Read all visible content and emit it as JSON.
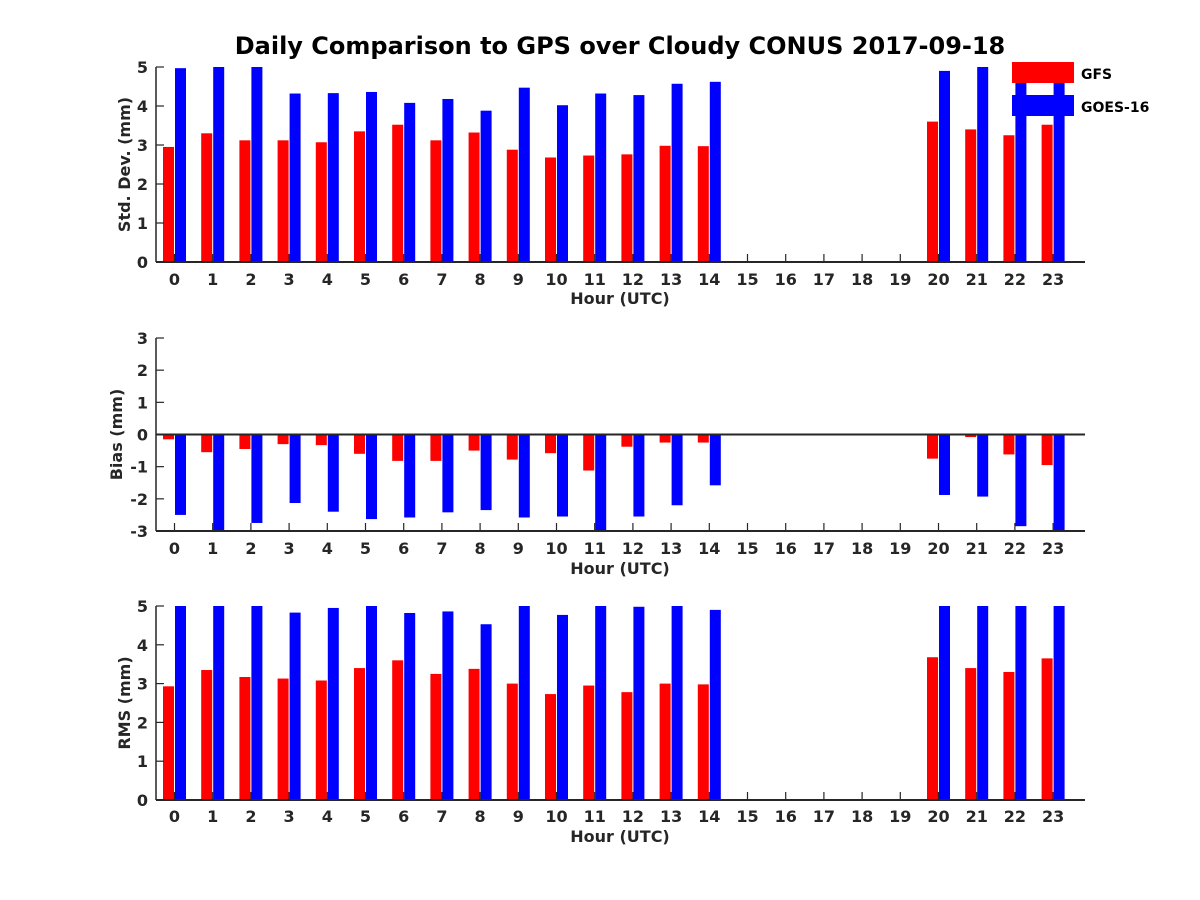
{
  "chart_data": {
    "type": "bar",
    "title": "Daily Comparison to GPS over Cloudy CONUS 2017-09-18",
    "legend": {
      "placement": "top-right",
      "entries": [
        "GFS",
        "GOES-16"
      ]
    },
    "colors": {
      "GFS": "#ff0000",
      "GOES-16": "#0000ff",
      "axis": "#262626"
    },
    "categories": [
      "0",
      "1",
      "2",
      "3",
      "4",
      "5",
      "6",
      "7",
      "8",
      "9",
      "10",
      "11",
      "12",
      "13",
      "14",
      "15",
      "16",
      "17",
      "18",
      "19",
      "20",
      "21",
      "22",
      "23"
    ],
    "panels": [
      {
        "id": "std",
        "xlabel": "Hour (UTC)",
        "ylabel": "Std. Dev. (mm)",
        "ylim": [
          0,
          5
        ],
        "yticks": [
          "0",
          "1",
          "2",
          "3",
          "4",
          "5"
        ],
        "series": [
          {
            "name": "GFS",
            "values": [
              2.95,
              3.3,
              3.12,
              3.12,
              3.07,
              3.35,
              3.52,
              3.12,
              3.32,
              2.88,
              2.68,
              2.73,
              2.76,
              2.98,
              2.97,
              null,
              null,
              null,
              null,
              null,
              3.6,
              3.4,
              3.25,
              3.52
            ]
          },
          {
            "name": "GOES-16",
            "values": [
              4.97,
              5.0,
              5.0,
              4.32,
              4.33,
              4.36,
              4.08,
              4.18,
              3.88,
              4.47,
              4.02,
              4.32,
              4.28,
              4.57,
              4.62,
              null,
              null,
              null,
              null,
              null,
              4.9,
              5.0,
              4.9,
              5.0
            ]
          }
        ]
      },
      {
        "id": "bias",
        "xlabel": "Hour (UTC)",
        "ylabel": "Bias (mm)",
        "ylim": [
          -3,
          3
        ],
        "yticks": [
          "-3",
          "-2",
          "-1",
          "0",
          "1",
          "2",
          "3"
        ],
        "zero_line": true,
        "series": [
          {
            "name": "GFS",
            "values": [
              -0.15,
              -0.55,
              -0.45,
              -0.3,
              -0.33,
              -0.6,
              -0.82,
              -0.82,
              -0.5,
              -0.78,
              -0.58,
              -1.12,
              -0.38,
              -0.25,
              -0.25,
              null,
              null,
              null,
              null,
              null,
              -0.75,
              -0.08,
              -0.62,
              -0.95
            ]
          },
          {
            "name": "GOES-16",
            "values": [
              -2.5,
              -3.0,
              -2.75,
              -2.13,
              -2.4,
              -2.63,
              -2.58,
              -2.42,
              -2.35,
              -2.58,
              -2.55,
              -3.0,
              -2.55,
              -2.2,
              -1.58,
              null,
              null,
              null,
              null,
              null,
              -1.88,
              -1.93,
              -2.85,
              -3.0
            ]
          }
        ]
      },
      {
        "id": "rms",
        "xlabel": "Hour (UTC)",
        "ylabel": "RMS (mm)",
        "ylim": [
          0,
          5
        ],
        "yticks": [
          "0",
          "1",
          "2",
          "3",
          "4",
          "5"
        ],
        "series": [
          {
            "name": "GFS",
            "values": [
              2.93,
              3.35,
              3.17,
              3.13,
              3.08,
              3.4,
              3.6,
              3.25,
              3.38,
              3.0,
              2.73,
              2.95,
              2.78,
              3.0,
              2.98,
              null,
              null,
              null,
              null,
              null,
              3.68,
              3.4,
              3.3,
              3.65
            ]
          },
          {
            "name": "GOES-16",
            "values": [
              5.0,
              5.0,
              5.0,
              4.83,
              4.95,
              5.0,
              4.82,
              4.86,
              4.53,
              5.0,
              4.77,
              5.0,
              4.98,
              5.0,
              4.9,
              null,
              null,
              null,
              null,
              null,
              5.0,
              5.0,
              5.0,
              5.0
            ]
          }
        ]
      }
    ]
  }
}
